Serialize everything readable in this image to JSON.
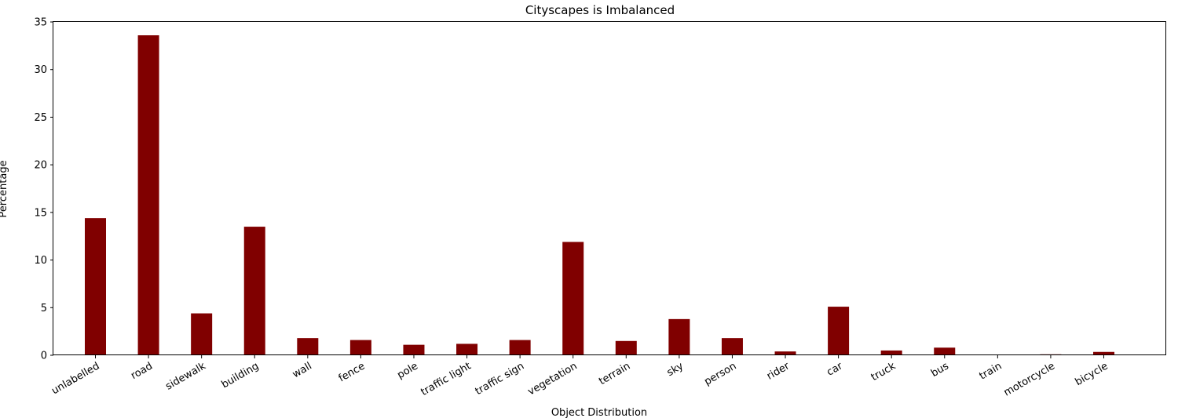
{
  "chart_data": {
    "type": "bar",
    "title": "Cityscapes is Imbalanced",
    "xlabel": "Object Distribution",
    "ylabel": "Percentage",
    "categories": [
      "unlabelled",
      "road",
      "sidewalk",
      "building",
      "wall",
      "fence",
      "pole",
      "traffic light",
      "traffic sign",
      "vegetation",
      "terrain",
      "sky",
      "person",
      "rider",
      "car",
      "truck",
      "bus",
      "train",
      "motorcycle",
      "bicycle"
    ],
    "values": [
      14.4,
      33.6,
      4.4,
      13.5,
      1.8,
      1.6,
      1.1,
      1.2,
      1.6,
      11.9,
      1.5,
      3.8,
      1.8,
      0.4,
      5.1,
      0.5,
      0.8,
      0.0,
      0.1,
      0.35
    ],
    "ylim": [
      0,
      35
    ],
    "yticks": [
      0,
      5,
      10,
      15,
      20,
      25,
      30,
      35
    ],
    "bar_color": "#800000",
    "grid": false
  }
}
